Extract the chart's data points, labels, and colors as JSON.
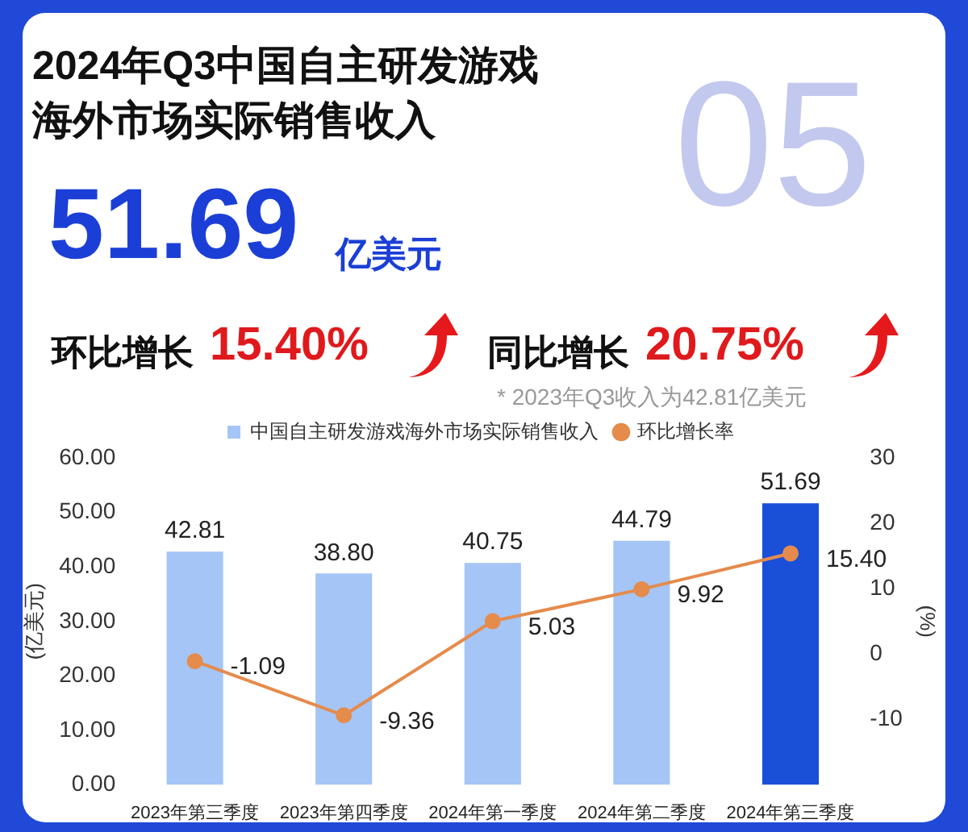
{
  "chart_data": {
    "type": "bar",
    "title": "2024年Q3中国自主研发游戏海外市场实际销售收入",
    "annotations": [
      "05",
      "51.69",
      "亿美元",
      "环比增长",
      "15.40%",
      "同比增长",
      "20.75%",
      "* 2023年Q3收入为42.81亿美元"
    ],
    "categories": [
      "2023年第三季度",
      "2023年第四季度",
      "2024年第一季度",
      "2024年第二季度",
      "2024年第三季度"
    ],
    "series": [
      {
        "name": "中国自主研发游戏海外市场实际销售收入",
        "color": "#a5c5f6",
        "colors": [
          "#a5c5f6",
          "#a5c5f6",
          "#a5c5f6",
          "#a5c5f6",
          "#1a4fd8"
        ],
        "values": [
          42.81,
          38.8,
          40.75,
          44.79,
          51.69
        ],
        "value_labels": [
          "42.81",
          "38.80",
          "40.75",
          "44.79",
          "51.69"
        ]
      },
      {
        "name": "环比增长率",
        "type": "line",
        "axis": "y2",
        "color": "#e58b4c",
        "values": [
          -1.09,
          -9.36,
          5.03,
          9.92,
          15.4
        ],
        "value_labels": [
          "-1.09",
          "-9.36",
          "5.03",
          "9.92",
          "15.40"
        ]
      }
    ],
    "ylabel": "(亿美元)",
    "y2label": "(%)",
    "ylim": [
      0,
      60
    ],
    "yticks": [
      {
        "value": 0,
        "label": "0.00"
      },
      {
        "value": 10,
        "label": "10.00"
      },
      {
        "value": 20,
        "label": "20.00"
      },
      {
        "value": 30,
        "label": "30.00"
      },
      {
        "value": 40,
        "label": "40.00"
      },
      {
        "value": 50,
        "label": "50.00"
      },
      {
        "value": 60,
        "label": "60.00"
      }
    ],
    "y2lim": [
      -20,
      30
    ],
    "y2ticks": [
      -10,
      0,
      10,
      20,
      30
    ],
    "legend": "top",
    "grid": false,
    "marker": "circle",
    "line_style": "solid"
  }
}
